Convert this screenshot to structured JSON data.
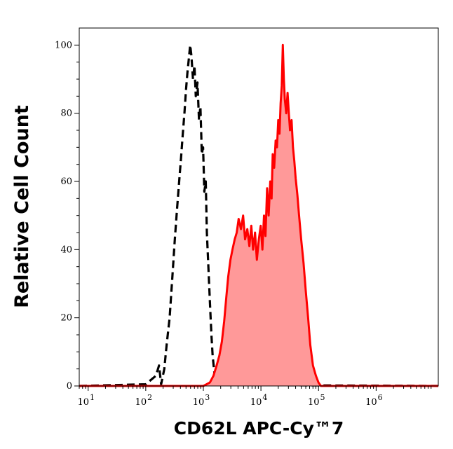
{
  "chart_data": {
    "type": "area",
    "title": "",
    "xlabel": "CD62L APC-Cy™7",
    "ylabel": "Relative Cell Count",
    "x_scale": "log",
    "xlim": [
      7,
      12000000
    ],
    "ylim": [
      0,
      105
    ],
    "x_ticks": [
      {
        "value": 10,
        "base": "10",
        "exp": "1"
      },
      {
        "value": 100,
        "base": "10",
        "exp": "2"
      },
      {
        "value": 1000,
        "base": "10",
        "exp": "3"
      },
      {
        "value": 10000,
        "base": "10",
        "exp": "4"
      },
      {
        "value": 100000,
        "base": "10",
        "exp": "5"
      },
      {
        "value": 1000000,
        "base": "10",
        "exp": "6"
      }
    ],
    "y_ticks": [
      0,
      20,
      40,
      60,
      80,
      100
    ],
    "grid": false,
    "series": [
      {
        "style": "dashed",
        "color": "#000000",
        "fill": "none",
        "points": [
          [
            7,
            0
          ],
          [
            100,
            0.5
          ],
          [
            150,
            3
          ],
          [
            170,
            6
          ],
          [
            185,
            0.5
          ],
          [
            210,
            5
          ],
          [
            230,
            12
          ],
          [
            260,
            20
          ],
          [
            290,
            32
          ],
          [
            320,
            43
          ],
          [
            350,
            52
          ],
          [
            380,
            60
          ],
          [
            410,
            67
          ],
          [
            440,
            74
          ],
          [
            470,
            80
          ],
          [
            500,
            87
          ],
          [
            530,
            92
          ],
          [
            560,
            96
          ],
          [
            590,
            100
          ],
          [
            620,
            97
          ],
          [
            660,
            90
          ],
          [
            700,
            94
          ],
          [
            740,
            85
          ],
          [
            790,
            89
          ],
          [
            840,
            78
          ],
          [
            890,
            82
          ],
          [
            940,
            68
          ],
          [
            990,
            70
          ],
          [
            1040,
            57
          ],
          [
            1100,
            60
          ],
          [
            1150,
            45
          ],
          [
            1200,
            38
          ],
          [
            1260,
            30
          ],
          [
            1320,
            22
          ],
          [
            1380,
            15
          ],
          [
            1450,
            9
          ],
          [
            1550,
            4
          ],
          [
            1700,
            1
          ],
          [
            1900,
            0.3
          ],
          [
            12000000,
            0
          ]
        ]
      },
      {
        "style": "solid",
        "color": "#ff0000",
        "fill": "#ff9999",
        "points": [
          [
            7,
            0
          ],
          [
            1000,
            0
          ],
          [
            1300,
            1
          ],
          [
            1500,
            3
          ],
          [
            1700,
            6
          ],
          [
            1900,
            9
          ],
          [
            2100,
            13
          ],
          [
            2300,
            19
          ],
          [
            2500,
            26
          ],
          [
            2700,
            32
          ],
          [
            2950,
            37
          ],
          [
            3200,
            40
          ],
          [
            3500,
            43
          ],
          [
            3800,
            45
          ],
          [
            4100,
            49
          ],
          [
            4500,
            46
          ],
          [
            4900,
            50
          ],
          [
            5300,
            43
          ],
          [
            5800,
            46
          ],
          [
            6300,
            41
          ],
          [
            6800,
            47
          ],
          [
            7300,
            40
          ],
          [
            7900,
            45
          ],
          [
            8500,
            37
          ],
          [
            9200,
            43
          ],
          [
            9900,
            47
          ],
          [
            10600,
            40
          ],
          [
            11300,
            50
          ],
          [
            12000,
            44
          ],
          [
            12800,
            58
          ],
          [
            13600,
            50
          ],
          [
            14500,
            60
          ],
          [
            15300,
            55
          ],
          [
            16000,
            68
          ],
          [
            17000,
            64
          ],
          [
            18000,
            72
          ],
          [
            19000,
            70
          ],
          [
            20000,
            78
          ],
          [
            21000,
            74
          ],
          [
            22000,
            83
          ],
          [
            23000,
            88
          ],
          [
            24000,
            100
          ],
          [
            25000,
            90
          ],
          [
            26000,
            84
          ],
          [
            27500,
            80
          ],
          [
            29000,
            86
          ],
          [
            30500,
            80
          ],
          [
            32000,
            75
          ],
          [
            34000,
            78
          ],
          [
            36000,
            70
          ],
          [
            38000,
            66
          ],
          [
            40000,
            61
          ],
          [
            43000,
            56
          ],
          [
            46000,
            50
          ],
          [
            50000,
            43
          ],
          [
            55000,
            36
          ],
          [
            60000,
            28
          ],
          [
            66000,
            20
          ],
          [
            72000,
            12
          ],
          [
            80000,
            6
          ],
          [
            90000,
            3
          ],
          [
            100000,
            1
          ],
          [
            110000,
            0
          ],
          [
            12000000,
            0
          ]
        ]
      }
    ]
  }
}
